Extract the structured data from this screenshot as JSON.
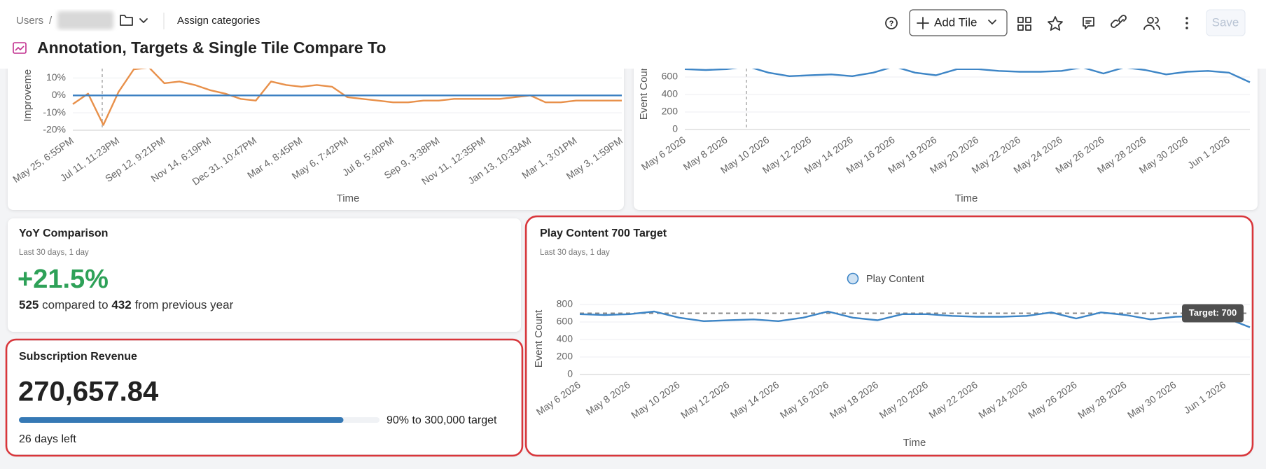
{
  "header": {
    "breadcrumb_root": "Users",
    "breadcrumb_separator": "/",
    "assign": "Assign categories",
    "title": "Annotation, Targets & Single Tile Compare To",
    "add_tile": "Add Tile",
    "save": "Save"
  },
  "tiles": {
    "yoy": {
      "title": "YoY Comparison",
      "subtitle": "Last 30 days, 1 day",
      "change": "+21.5%",
      "current": 525,
      "compared": "compared to",
      "previous": 432,
      "suffix": "from previous year"
    },
    "revenue": {
      "title": "Subscription Revenue",
      "value": "270,657.84",
      "progress": 90,
      "progress_label": "90% to 300,000 target",
      "days_left": "26 days left"
    }
  },
  "chart_data": [
    {
      "type": "line",
      "y_label": "Improvement",
      "x_label": "Time",
      "categories": [
        "May 25, 6:55PM",
        null,
        null,
        "Jul 11, 11:23PM",
        null,
        null,
        "Sep 12, 9:21PM",
        null,
        null,
        "Nov 14, 6:19PM",
        null,
        null,
        "Dec 31, 10:47PM",
        null,
        null,
        "Mar 4, 8:45PM",
        null,
        null,
        "May 6, 7:42PM",
        null,
        null,
        "Jul 8, 5:40PM",
        null,
        null,
        "Sep 9, 3:38PM",
        null,
        null,
        "Nov 11, 12:35PM",
        null,
        null,
        "Jan 13, 10:33AM",
        null,
        null,
        "Mar 1, 3:01PM",
        null,
        null,
        "May 3, 1:59PM"
      ],
      "series": [
        {
          "color": "#e8904a",
          "values": [
            -5,
            1,
            -17,
            2,
            15,
            16,
            7,
            8,
            6,
            3,
            1,
            -2,
            -3,
            8,
            6,
            5,
            6,
            5,
            -1,
            -2,
            -3,
            -4,
            -4,
            -3,
            -3,
            -2,
            -2,
            -2,
            -2,
            -1,
            0,
            -4,
            -4,
            -3,
            -3,
            -3,
            -3
          ]
        },
        {
          "color": "#3a7fc1",
          "values": [
            0,
            0,
            0,
            0,
            0,
            0,
            0,
            0,
            0,
            0,
            0,
            0,
            0,
            0,
            0,
            0,
            0,
            0,
            0,
            0,
            0,
            0,
            0,
            0,
            0,
            0,
            0,
            0,
            0,
            0,
            0,
            0,
            0,
            0,
            0,
            0,
            0
          ]
        }
      ],
      "ylim": [
        -20,
        15
      ],
      "yticks": [
        {
          "value": -20,
          "label": "-20%"
        },
        {
          "value": -10,
          "label": "-10%"
        },
        {
          "value": 0,
          "label": "0%"
        },
        {
          "value": 10,
          "label": "10%"
        }
      ],
      "grid": true
    },
    {
      "type": "line",
      "y_label": "Event Count",
      "x_label": "Time",
      "categories": [
        "May 6 2026",
        null,
        "May 8 2026",
        null,
        "May 10 2026",
        null,
        "May 12 2026",
        null,
        "May 14 2026",
        null,
        "May 16 2026",
        null,
        "May 18 2026",
        null,
        "May 20 2026",
        null,
        "May 22 2026",
        null,
        "May 24 2026",
        null,
        "May 26 2026",
        null,
        "May 28 2026",
        null,
        "May 30 2026",
        null,
        "Jun 1 2026",
        null
      ],
      "series": [
        {
          "color": "#3d85c6",
          "values": [
            690,
            680,
            690,
            720,
            650,
            610,
            620,
            630,
            610,
            650,
            720,
            650,
            620,
            690,
            690,
            670,
            660,
            660,
            670,
            710,
            640,
            710,
            680,
            630,
            660,
            670,
            650,
            540
          ]
        }
      ],
      "ylim": [
        0,
        660
      ],
      "yticks": [
        0,
        200,
        400,
        600
      ],
      "grid": true
    },
    {
      "type": "line",
      "title": "Play Content 700 Target",
      "subtitle": "Last 30 days, 1 day",
      "y_label": "Event Count",
      "x_label": "Time",
      "legend": "top",
      "categories": [
        "May 6 2026",
        null,
        "May 8 2026",
        null,
        "May 10 2026",
        null,
        "May 12 2026",
        null,
        "May 14 2026",
        null,
        "May 16 2026",
        null,
        "May 18 2026",
        null,
        "May 20 2026",
        null,
        "May 22 2026",
        null,
        "May 24 2026",
        null,
        "May 26 2026",
        null,
        "May 28 2026",
        null,
        "May 30 2026",
        null,
        "Jun 1 2026",
        null
      ],
      "series": [
        {
          "name": "Play Content",
          "color": "#3d85c6",
          "values": [
            690,
            680,
            690,
            720,
            650,
            610,
            620,
            630,
            610,
            650,
            720,
            650,
            620,
            690,
            690,
            670,
            660,
            660,
            670,
            710,
            640,
            710,
            680,
            630,
            660,
            670,
            650,
            540
          ]
        }
      ],
      "ylim": [
        0,
        800
      ],
      "yticks": [
        0,
        200,
        400,
        600,
        800
      ],
      "grid": true,
      "target": {
        "value": 700,
        "label": "Target: 700"
      }
    }
  ]
}
